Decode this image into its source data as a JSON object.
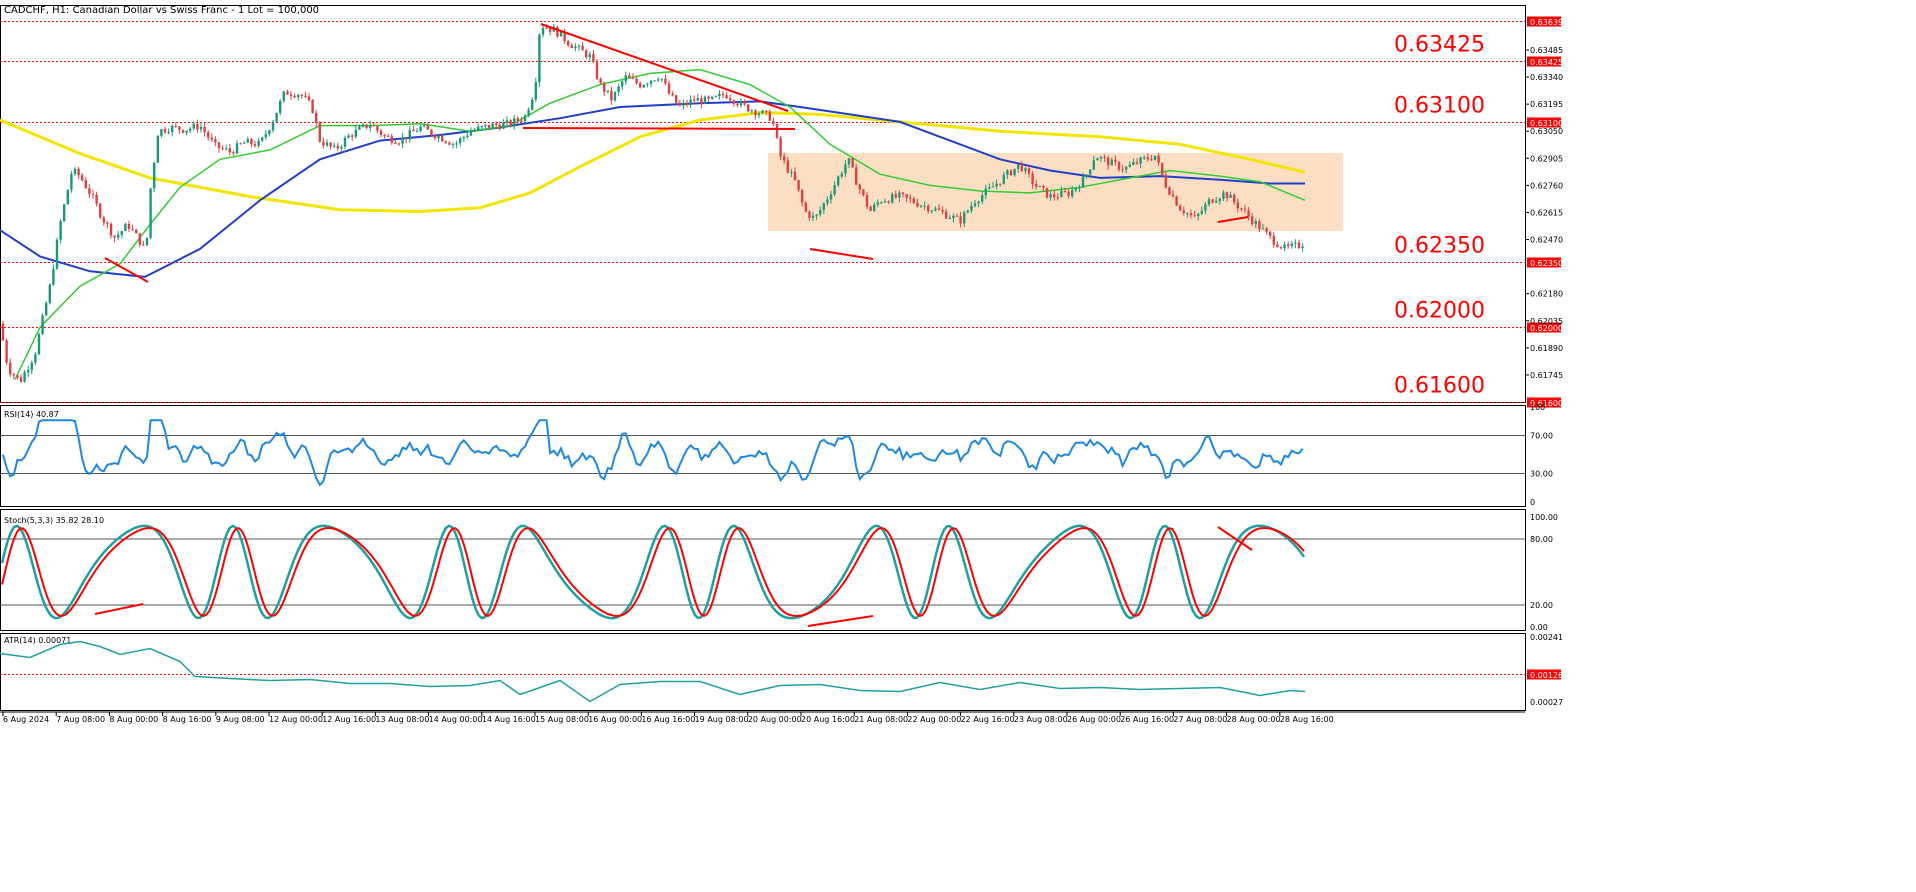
{
  "chart_data": {
    "type": "line",
    "title": "CADCHF, H1:  Canadian Dollar vs Swiss Franc - 1 Lot = 100,000",
    "symbol": "CADCHF",
    "timeframe": "H1",
    "description": "Canadian Dollar vs Swiss Franc",
    "lot": "1 Lot = 100,000",
    "ylim": [
      0.616,
      0.6371
    ],
    "y_axis_ticks": [
      "0.63485",
      "0.63340",
      "0.63195",
      "0.63050",
      "0.62905",
      "0.62760",
      "0.62615",
      "0.62470",
      "0.62180",
      "0.62035",
      "0.61890",
      "0.61745"
    ],
    "x_tick_labels": [
      "6 Aug 2024",
      "7 Aug 08:00",
      "8 Aug 00:00",
      "8 Aug 16:00",
      "9 Aug 08:00",
      "12 Aug 00:00",
      "12 Aug 16:00",
      "13 Aug 08:00",
      "14 Aug 00:00",
      "14 Aug 16:00",
      "15 Aug 08:00",
      "16 Aug 00:00",
      "16 Aug 16:00",
      "19 Aug 08:00",
      "20 Aug 00:00",
      "20 Aug 16:00",
      "21 Aug 08:00",
      "22 Aug 00:00",
      "22 Aug 16:00",
      "23 Aug 08:00",
      "26 Aug 00:00",
      "26 Aug 16:00",
      "27 Aug 08:00",
      "28 Aug 00:00",
      "28 Aug 16:00"
    ],
    "levels": [
      {
        "value": 0.63639,
        "axis_label": "0.63639",
        "big_label": ""
      },
      {
        "value": 0.63425,
        "axis_label": "0.63425",
        "big_label": "0.63425"
      },
      {
        "value": 0.631,
        "axis_label": "0.63100",
        "big_label": "0.63100"
      },
      {
        "value": 0.6235,
        "axis_label": "0.62350",
        "big_label": "0.62350"
      },
      {
        "value": 0.62,
        "axis_label": "0.62000",
        "big_label": "0.62000"
      },
      {
        "value": 0.616,
        "axis_label": "0.61600",
        "big_label": "0.61600"
      }
    ],
    "price_path": [
      [
        0,
        0.6202
      ],
      [
        8,
        0.6178
      ],
      [
        20,
        0.6171
      ],
      [
        35,
        0.6186
      ],
      [
        50,
        0.6222
      ],
      [
        60,
        0.6255
      ],
      [
        72,
        0.6284
      ],
      [
        80,
        0.6281
      ],
      [
        92,
        0.627
      ],
      [
        103,
        0.6258
      ],
      [
        115,
        0.6248
      ],
      [
        128,
        0.6255
      ],
      [
        140,
        0.6246
      ],
      [
        146,
        0.624
      ],
      [
        150,
        0.6272
      ],
      [
        158,
        0.6305
      ],
      [
        170,
        0.6307
      ],
      [
        185,
        0.6306
      ],
      [
        200,
        0.6308
      ],
      [
        215,
        0.6297
      ],
      [
        230,
        0.6294
      ],
      [
        245,
        0.6299
      ],
      [
        260,
        0.6298
      ],
      [
        272,
        0.631
      ],
      [
        285,
        0.6326
      ],
      [
        300,
        0.6325
      ],
      [
        312,
        0.6318
      ],
      [
        320,
        0.63
      ],
      [
        335,
        0.6295
      ],
      [
        350,
        0.6303
      ],
      [
        370,
        0.6309
      ],
      [
        385,
        0.6302
      ],
      [
        400,
        0.63
      ],
      [
        420,
        0.6307
      ],
      [
        440,
        0.6302
      ],
      [
        455,
        0.6298
      ],
      [
        470,
        0.6305
      ],
      [
        490,
        0.6308
      ],
      [
        510,
        0.6309
      ],
      [
        525,
        0.6313
      ],
      [
        535,
        0.6328
      ],
      [
        540,
        0.6362
      ],
      [
        555,
        0.6359
      ],
      [
        570,
        0.6352
      ],
      [
        590,
        0.6345
      ],
      [
        600,
        0.633
      ],
      [
        612,
        0.6322
      ],
      [
        625,
        0.6334
      ],
      [
        640,
        0.633
      ],
      [
        660,
        0.6335
      ],
      [
        670,
        0.6324
      ],
      [
        680,
        0.6318
      ],
      [
        695,
        0.6322
      ],
      [
        710,
        0.6321
      ],
      [
        725,
        0.6325
      ],
      [
        745,
        0.6318
      ],
      [
        760,
        0.6315
      ],
      [
        772,
        0.6312
      ],
      [
        780,
        0.6292
      ],
      [
        795,
        0.6278
      ],
      [
        805,
        0.6262
      ],
      [
        815,
        0.6258
      ],
      [
        828,
        0.627
      ],
      [
        840,
        0.6282
      ],
      [
        848,
        0.629
      ],
      [
        858,
        0.6276
      ],
      [
        870,
        0.6262
      ],
      [
        880,
        0.6268
      ],
      [
        900,
        0.627
      ],
      [
        920,
        0.6266
      ],
      [
        940,
        0.6262
      ],
      [
        960,
        0.6257
      ],
      [
        975,
        0.6268
      ],
      [
        990,
        0.6274
      ],
      [
        1005,
        0.6281
      ],
      [
        1020,
        0.6287
      ],
      [
        1035,
        0.6276
      ],
      [
        1050,
        0.627
      ],
      [
        1070,
        0.6272
      ],
      [
        1085,
        0.628
      ],
      [
        1095,
        0.6292
      ],
      [
        1110,
        0.6288
      ],
      [
        1125,
        0.6285
      ],
      [
        1140,
        0.6289
      ],
      [
        1155,
        0.6292
      ],
      [
        1165,
        0.6277
      ],
      [
        1180,
        0.6264
      ],
      [
        1195,
        0.6258
      ],
      [
        1210,
        0.6268
      ],
      [
        1225,
        0.6272
      ],
      [
        1240,
        0.6264
      ],
      [
        1255,
        0.6256
      ],
      [
        1270,
        0.6248
      ],
      [
        1285,
        0.6242
      ],
      [
        1300,
        0.6244
      ],
      [
        1305,
        0.6246
      ]
    ],
    "indicators": {
      "rsi": {
        "label": "RSI(14) 40.87",
        "ticks": [
          "100",
          "70.00",
          "30.00",
          "0"
        ],
        "levels": [
          70,
          30
        ]
      },
      "stoch": {
        "label": "Stoch(5,3,3) 35.82 28.10",
        "ticks": [
          "100.00",
          "80.00",
          "20.00",
          "0.00"
        ],
        "levels": [
          80,
          20
        ]
      },
      "atr": {
        "label": "ATR(14) 0.00071",
        "ticks": [
          "0.00241",
          "0.00027"
        ],
        "level_label": "0.00126"
      }
    },
    "series_colors": {
      "price_up": "#1a9a7a",
      "price_down": "#e04040",
      "ma_fast": "#33cc33",
      "ma_mid": "#1f3fcc",
      "ma_slow": "#f2e600",
      "trendline": "#ff0000",
      "zone": "#fbd9b8",
      "rsi": "#1e88e5",
      "stoch_main": "#1fa0a0",
      "stoch_signal": "#ff0000",
      "atr": "#20a0a0",
      "level_line": "#ff0000"
    },
    "grid": false
  }
}
